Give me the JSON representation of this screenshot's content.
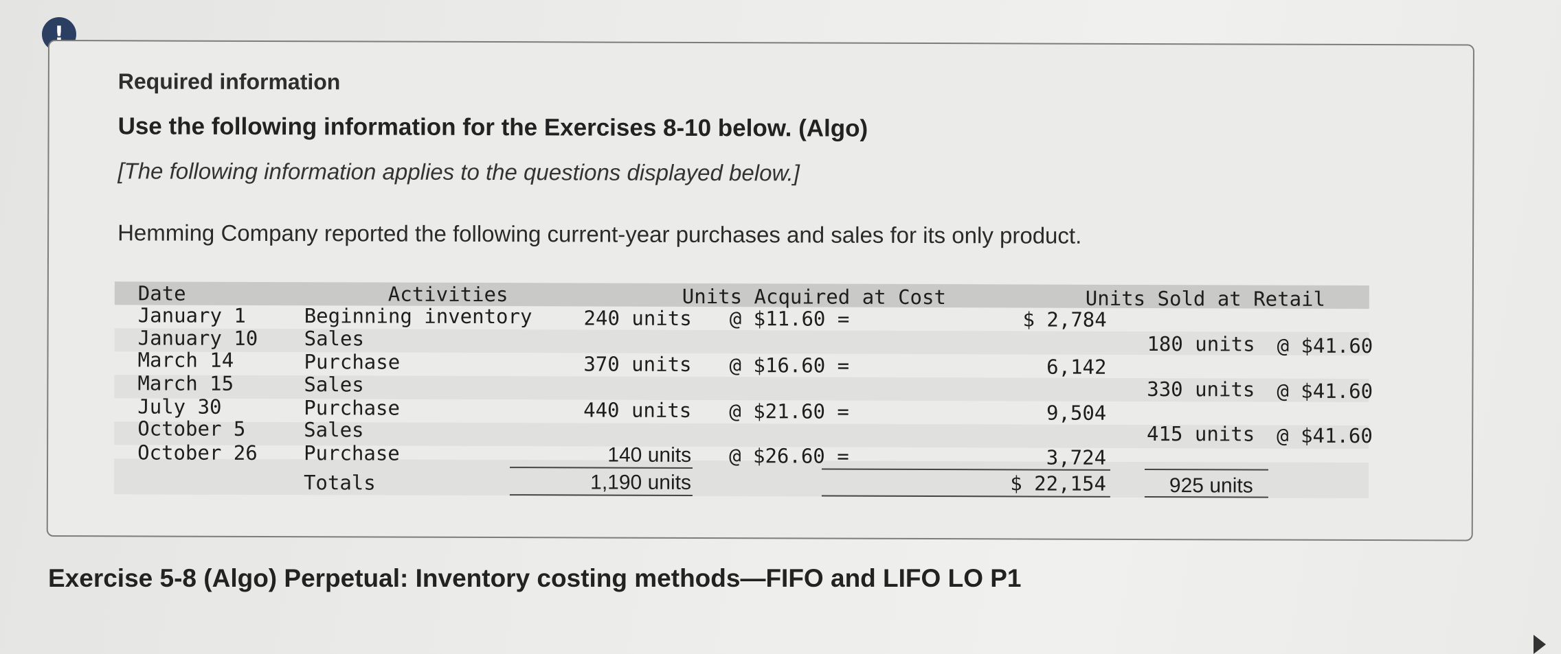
{
  "alert": {
    "symbol": "!"
  },
  "info": {
    "required_title": "Required information",
    "use_info": "Use the following information for the Exercises 8-10 below. (Algo)",
    "note": "[The following information applies to the questions displayed below.]",
    "intro": "Hemming Company reported the following current-year purchases and sales for its only product."
  },
  "table": {
    "headers": {
      "date": "Date",
      "activities": "Activities",
      "acquired": "Units Acquired at Cost",
      "sold": "Units Sold at Retail"
    },
    "rows": [
      {
        "date": "January 1",
        "activity": "Beginning inventory",
        "units": "240 units",
        "cost": "@ $11.60 =",
        "total": "$ 2,784",
        "sold_units": "",
        "retail": ""
      },
      {
        "date": "January 10",
        "activity": "Sales",
        "units": "",
        "cost": "",
        "total": "",
        "sold_units": "180 units",
        "retail": "@ $41.60"
      },
      {
        "date": "March 14",
        "activity": "Purchase",
        "units": "370 units",
        "cost": "@ $16.60 =",
        "total": "6,142",
        "sold_units": "",
        "retail": ""
      },
      {
        "date": "March 15",
        "activity": "Sales",
        "units": "",
        "cost": "",
        "total": "",
        "sold_units": "330 units",
        "retail": "@ $41.60"
      },
      {
        "date": "July 30",
        "activity": "Purchase",
        "units": "440 units",
        "cost": "@ $21.60 =",
        "total": "9,504",
        "sold_units": "",
        "retail": ""
      },
      {
        "date": "October 5",
        "activity": "Sales",
        "units": "",
        "cost": "",
        "total": "",
        "sold_units": "415 units",
        "retail": "@ $41.60"
      },
      {
        "date": "October 26",
        "activity": "Purchase",
        "units": "140 units",
        "cost": "@ $26.60 =",
        "total": "3,724",
        "sold_units": "",
        "retail": ""
      }
    ],
    "totals": {
      "label": "Totals",
      "units": "1,190 units",
      "total": "$ 22,154",
      "sold_units": "925 units"
    }
  },
  "exercise": {
    "title": "Exercise 5-8 (Algo) Perpetual: Inventory costing methods—FIFO and LIFO LO P1"
  }
}
